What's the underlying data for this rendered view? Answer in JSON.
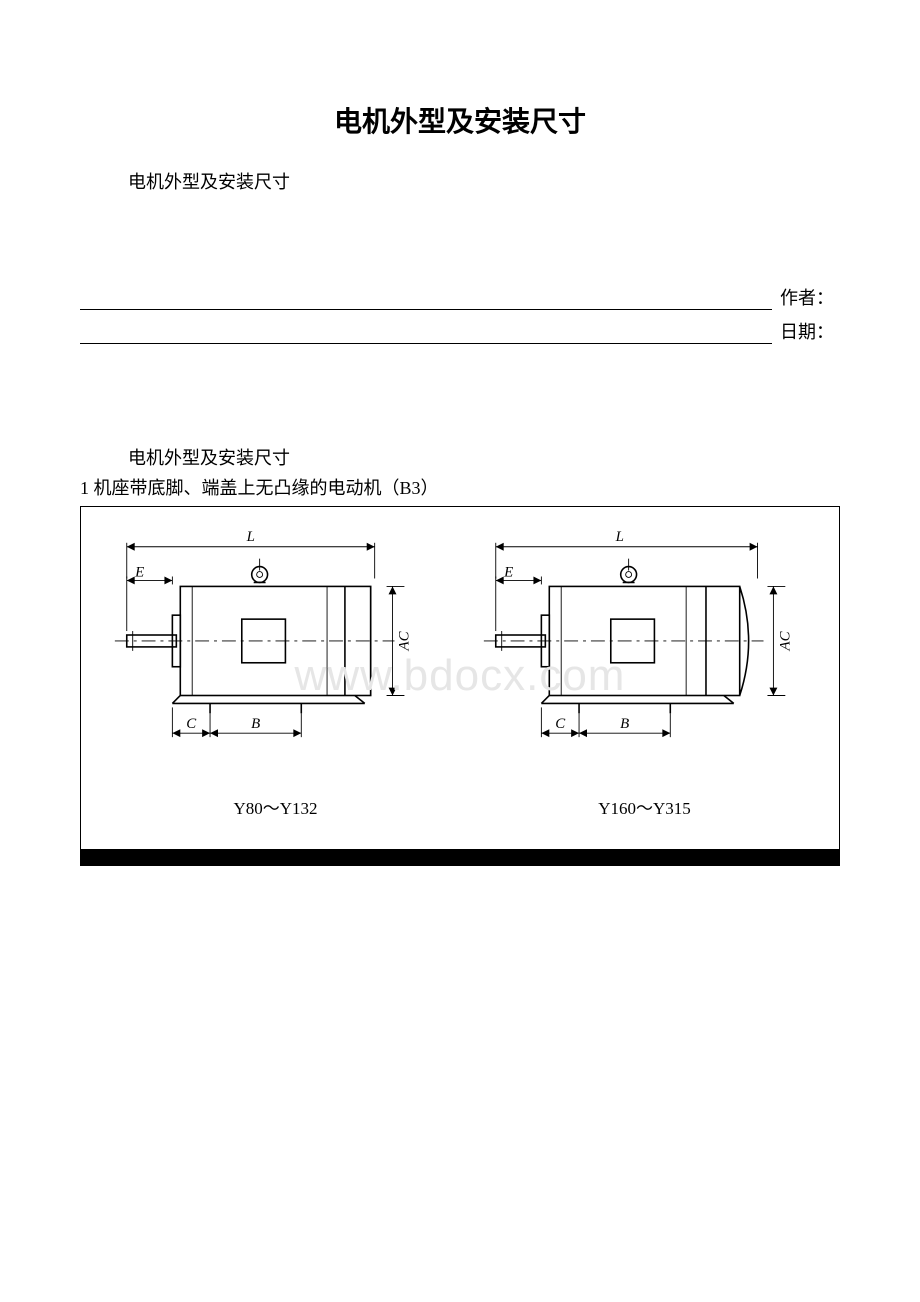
{
  "title": "电机外型及安装尺寸",
  "subtitle": "电机外型及安装尺寸",
  "author_label": "作者：",
  "date_label": "日期：",
  "section_header": "电机外型及安装尺寸",
  "item1": "1 机座带底脚、端盖上无凸缘的电动机（B3）",
  "watermark": "www.bdocx.com",
  "diagram": {
    "left_caption": "Y80～Y132",
    "right_caption": "Y160～Y315",
    "labels": {
      "L": "L",
      "E": "E",
      "C": "C",
      "B": "B",
      "AC": "AC"
    },
    "stroke": "#000000",
    "stroke_width": 1.6,
    "thin_stroke": 0.9,
    "font_family": "Times New Roman, serif",
    "font_size": 15,
    "font_style": "italic"
  }
}
